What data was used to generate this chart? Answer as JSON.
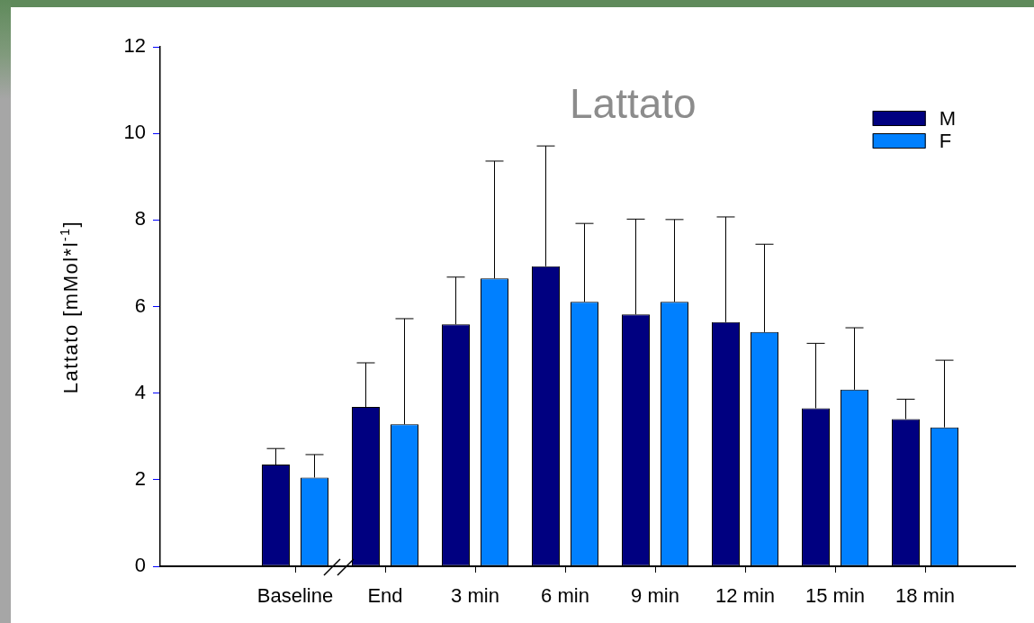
{
  "chart_data": {
    "type": "bar",
    "title": "Lattato",
    "ylabel": "Lattato [mMol*l$^{-1}$]",
    "categories": [
      "Baseline",
      "End",
      "3 min",
      "6 min",
      "9 min",
      "12 min",
      "15 min",
      "18 min"
    ],
    "series": [
      {
        "name": "M",
        "color": "#000080",
        "values": [
          2.35,
          3.68,
          5.59,
          6.93,
          5.82,
          5.64,
          3.65,
          3.4
        ],
        "errors": [
          [
            2.35,
            2.72
          ],
          [
            3.68,
            4.7
          ],
          [
            5.59,
            6.68
          ],
          [
            6.93,
            9.71
          ],
          [
            5.82,
            8.02
          ],
          [
            5.64,
            8.07
          ],
          [
            3.65,
            5.15
          ],
          [
            3.4,
            3.86
          ]
        ]
      },
      {
        "name": "F",
        "color": "#0080ff",
        "values": [
          2.05,
          3.28,
          6.65,
          6.11,
          6.11,
          5.41,
          4.08,
          3.21
        ],
        "errors": [
          [
            2.05,
            2.58
          ],
          [
            3.28,
            5.72
          ],
          [
            6.65,
            9.36
          ],
          [
            6.11,
            7.92
          ],
          [
            6.11,
            8.01
          ],
          [
            5.41,
            7.44
          ],
          [
            4.08,
            5.51
          ],
          [
            3.21,
            4.76
          ]
        ]
      }
    ],
    "ylim": [
      0,
      12
    ],
    "yticks": [
      0,
      2,
      4,
      6,
      8,
      10,
      12
    ],
    "legend": "top right"
  }
}
